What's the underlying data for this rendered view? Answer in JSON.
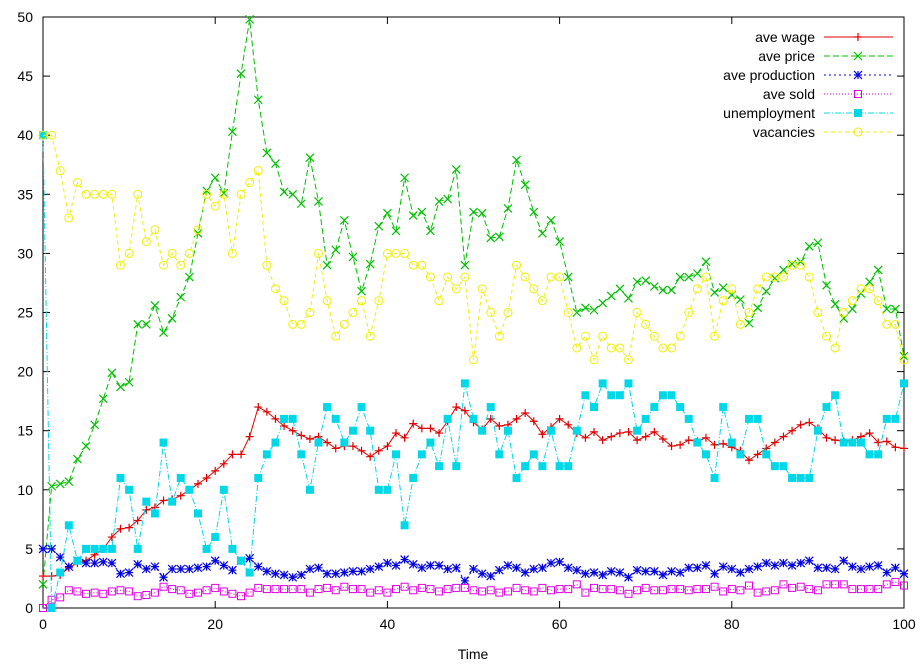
{
  "chart_data": {
    "type": "line",
    "title": "",
    "xlabel": "Time",
    "ylabel": "",
    "xlim": [
      0,
      100
    ],
    "ylim": [
      0,
      50
    ],
    "x_ticks": [
      0,
      20,
      40,
      60,
      80,
      100
    ],
    "y_ticks": [
      0,
      5,
      10,
      15,
      20,
      25,
      30,
      35,
      40,
      45,
      50
    ],
    "grid": false,
    "legend_position": "top-right",
    "x": [
      0,
      1,
      2,
      3,
      4,
      5,
      6,
      7,
      8,
      9,
      10,
      11,
      12,
      13,
      14,
      15,
      16,
      17,
      18,
      19,
      20,
      21,
      22,
      23,
      24,
      25,
      26,
      27,
      28,
      29,
      30,
      31,
      32,
      33,
      34,
      35,
      36,
      37,
      38,
      39,
      40,
      41,
      42,
      43,
      44,
      45,
      46,
      47,
      48,
      49,
      50,
      51,
      52,
      53,
      54,
      55,
      56,
      57,
      58,
      59,
      60,
      61,
      62,
      63,
      64,
      65,
      66,
      67,
      68,
      69,
      70,
      71,
      72,
      73,
      74,
      75,
      76,
      77,
      78,
      79,
      80,
      81,
      82,
      83,
      84,
      85,
      86,
      87,
      88,
      89,
      90,
      91,
      92,
      93,
      94,
      95,
      96,
      97,
      98,
      99,
      100
    ],
    "series": [
      {
        "name": "ave wage",
        "color": "#e00000",
        "dash": "",
        "marker": "plus",
        "values": [
          2.7,
          2.7,
          2.8,
          3.4,
          3.8,
          4.0,
          4.5,
          5.0,
          6.0,
          6.7,
          6.8,
          7.4,
          8.3,
          8.5,
          9.1,
          9.2,
          9.5,
          10.0,
          10.5,
          11.0,
          11.6,
          12.2,
          13.0,
          13.0,
          14.5,
          17.0,
          16.6,
          16.0,
          15.4,
          15.0,
          14.6,
          14.3,
          14.5,
          14.0,
          13.5,
          13.7,
          13.7,
          13.3,
          12.8,
          13.3,
          13.7,
          14.8,
          14.4,
          15.6,
          15.2,
          15.2,
          14.8,
          15.8,
          17.0,
          16.7,
          15.7,
          15.1,
          16.0,
          15.4,
          15.5,
          16.0,
          16.5,
          15.8,
          14.7,
          15.3,
          16.0,
          15.5,
          14.8,
          14.4,
          14.9,
          14.2,
          14.5,
          14.8,
          14.9,
          14.2,
          14.5,
          14.9,
          14.3,
          13.7,
          13.8,
          14.2,
          14.1,
          14.4,
          13.8,
          13.9,
          13.6,
          13.3,
          12.5,
          13.0,
          13.5,
          14.0,
          14.5,
          15.0,
          15.5,
          15.7,
          15.2,
          14.4,
          14.2,
          14.1,
          14.2,
          14.5,
          14.8,
          14.0,
          14.1,
          13.6,
          13.5
        ]
      },
      {
        "name": "ave price",
        "color": "#00c000",
        "dash": "6,3",
        "marker": "cross",
        "values": [
          2.0,
          10.3,
          10.5,
          10.7,
          12.6,
          13.7,
          15.5,
          17.7,
          19.9,
          18.7,
          19.1,
          24.0,
          24.0,
          25.6,
          23.3,
          24.5,
          26.3,
          28.0,
          31.7,
          35.3,
          36.4,
          35.1,
          40.3,
          45.2,
          49.8,
          43.0,
          38.5,
          37.6,
          35.2,
          35.0,
          34.2,
          38.1,
          34.4,
          29.0,
          30.3,
          32.8,
          29.7,
          26.8,
          29.1,
          32.3,
          33.4,
          31.9,
          36.4,
          33.2,
          33.5,
          31.9,
          34.4,
          34.6,
          37.1,
          29.0,
          33.5,
          33.4,
          31.3,
          31.4,
          33.8,
          37.9,
          35.8,
          33.5,
          31.7,
          32.8,
          31.0,
          28.0,
          25.0,
          25.4,
          25.2,
          25.8,
          26.4,
          27.0,
          26.2,
          27.6,
          27.7,
          27.2,
          26.9,
          26.9,
          28.0,
          28.0,
          28.3,
          29.3,
          26.7,
          27.1,
          26.5,
          26.1,
          24.1,
          25.4,
          26.8,
          27.9,
          28.6,
          29.1,
          29.3,
          30.6,
          30.9,
          27.3,
          25.7,
          24.5,
          25.3,
          26.6,
          27.6,
          28.6,
          25.3,
          25.3,
          21.3
        ]
      },
      {
        "name": "ave production",
        "color": "#0000e0",
        "dash": "2,3",
        "marker": "star",
        "values": [
          5.0,
          5.0,
          4.3,
          3.5,
          4.0,
          3.8,
          3.8,
          3.9,
          3.8,
          2.9,
          3.0,
          3.7,
          3.3,
          3.5,
          2.6,
          3.3,
          3.3,
          3.3,
          3.4,
          3.5,
          4.0,
          3.6,
          3.2,
          4.0,
          4.2,
          3.5,
          3.1,
          2.9,
          2.8,
          2.6,
          2.8,
          3.3,
          3.4,
          2.9,
          2.9,
          3.0,
          3.1,
          3.1,
          3.3,
          3.5,
          3.8,
          3.6,
          4.1,
          3.7,
          3.4,
          3.6,
          3.6,
          3.3,
          3.4,
          2.3,
          3.3,
          2.9,
          2.7,
          3.2,
          3.6,
          3.4,
          3.0,
          3.3,
          3.4,
          3.8,
          3.9,
          3.4,
          3.2,
          2.9,
          3.0,
          2.8,
          3.1,
          3.0,
          2.6,
          3.2,
          3.1,
          3.1,
          2.8,
          3.1,
          3.0,
          3.4,
          3.4,
          3.6,
          2.9,
          3.5,
          3.3,
          3.0,
          3.3,
          3.5,
          3.8,
          3.6,
          3.8,
          3.6,
          3.8,
          4.0,
          3.4,
          3.4,
          3.3,
          4.0,
          3.5,
          3.3,
          3.5,
          3.6,
          3.0,
          3.4,
          2.9
        ]
      },
      {
        "name": "ave sold",
        "color": "#e000e0",
        "dash": "1,2",
        "marker": "square",
        "values": [
          0.0,
          0.7,
          0.9,
          1.5,
          1.4,
          1.2,
          1.3,
          1.2,
          1.4,
          1.5,
          1.4,
          1.0,
          1.1,
          1.3,
          1.8,
          1.6,
          1.5,
          1.2,
          1.3,
          1.5,
          1.7,
          1.4,
          1.2,
          1.0,
          1.3,
          1.7,
          1.6,
          1.6,
          1.6,
          1.6,
          1.6,
          1.3,
          1.6,
          1.7,
          1.5,
          1.8,
          1.6,
          1.6,
          1.3,
          1.5,
          1.3,
          1.6,
          1.8,
          1.5,
          1.7,
          1.6,
          1.4,
          1.6,
          1.7,
          1.7,
          1.5,
          1.4,
          1.5,
          1.3,
          1.4,
          1.7,
          1.5,
          1.4,
          1.7,
          1.5,
          1.6,
          1.6,
          2.0,
          1.3,
          1.7,
          1.6,
          1.6,
          1.5,
          1.2,
          1.5,
          1.7,
          1.5,
          1.5,
          1.6,
          1.6,
          1.5,
          1.6,
          1.6,
          1.8,
          1.4,
          1.6,
          1.5,
          1.9,
          1.3,
          1.4,
          1.5,
          2.0,
          1.7,
          1.8,
          1.6,
          1.5,
          2.0,
          2.0,
          2.0,
          1.6,
          1.6,
          1.6,
          1.6,
          2.0,
          2.2,
          1.9
        ]
      },
      {
        "name": "unemployment",
        "color": "#00d8e8",
        "dash": "6,2,1,2",
        "marker": "filled-square",
        "values": [
          40,
          0,
          3,
          7,
          4,
          5,
          5,
          5,
          5,
          11,
          10,
          5,
          9,
          8,
          14,
          9,
          11,
          10,
          8,
          5,
          6,
          10,
          5,
          4,
          3,
          11,
          13,
          14,
          16,
          16,
          13,
          10,
          14,
          17,
          16,
          14,
          15,
          17,
          15,
          10,
          10,
          13,
          7,
          11,
          13,
          14,
          12,
          16,
          12,
          19,
          16,
          15,
          17,
          13,
          15,
          11,
          12,
          13,
          12,
          15,
          12,
          12,
          15,
          18,
          17,
          19,
          18,
          18,
          19,
          15,
          16,
          17,
          18,
          18,
          17,
          16,
          14,
          13,
          11,
          17,
          14,
          13,
          16,
          16,
          13,
          12,
          12,
          11,
          11,
          11,
          15,
          17,
          18,
          14,
          14,
          14,
          13,
          13,
          16,
          16,
          19
        ]
      },
      {
        "name": "vacancies",
        "color": "#f0f000",
        "dash": "4,3",
        "marker": "circle",
        "values": [
          40,
          40,
          37,
          33,
          36,
          35,
          35,
          35,
          35,
          29,
          30,
          35,
          31,
          32,
          29,
          30,
          29,
          30,
          32,
          35,
          34,
          35,
          30,
          35,
          36,
          37,
          29,
          27,
          26,
          24,
          24,
          25,
          30,
          26,
          23,
          24,
          25,
          26,
          23,
          26,
          30,
          30,
          30,
          29,
          29,
          28,
          26,
          28,
          27,
          28,
          21,
          27,
          25,
          23,
          25,
          29,
          28,
          27,
          26,
          28,
          28,
          25,
          22,
          23,
          21,
          23,
          22,
          22,
          21,
          25,
          24,
          23,
          22,
          22,
          23,
          25,
          27,
          28,
          23,
          26,
          27,
          24,
          25,
          27,
          28,
          28,
          28,
          29,
          29,
          28,
          25,
          23,
          22,
          25,
          26,
          27,
          27,
          26,
          24,
          24,
          21
        ]
      }
    ]
  }
}
